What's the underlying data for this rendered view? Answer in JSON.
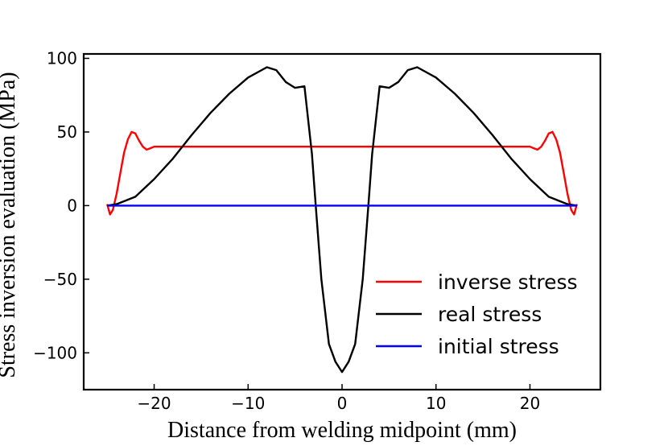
{
  "chart_data": {
    "type": "line",
    "title": "",
    "xlabel": "Distance from welding midpoint (mm)",
    "ylabel": "Stress inversion evaluation (MPa)",
    "xlim": [
      -27.5,
      27.5
    ],
    "ylim": [
      -125,
      103
    ],
    "xticks": [
      -20,
      -10,
      0,
      10,
      20
    ],
    "xtick_labels": [
      "−20",
      "−10",
      "0",
      "10",
      "20"
    ],
    "yticks": [
      100,
      50,
      0,
      -50,
      -100
    ],
    "ytick_labels": [
      "100",
      "50",
      "0",
      "−50",
      "−100"
    ],
    "grid": false,
    "legend_position": "lower-right",
    "series": [
      {
        "name": "inverse stress",
        "color": "#ff0000",
        "x": [
          -25,
          -24.7,
          -24.4,
          -24.0,
          -23.6,
          -23.2,
          -22.8,
          -22.4,
          -22.0,
          -21.6,
          -21.2,
          -20.8,
          -20.4,
          -20.0,
          -19.5,
          -15,
          -10,
          -5,
          0,
          5,
          10,
          15,
          19.5,
          20.0,
          20.4,
          20.8,
          21.2,
          21.6,
          22.0,
          22.4,
          22.8,
          23.2,
          23.6,
          24.0,
          24.4,
          24.7,
          25
        ],
        "y": [
          1,
          -6,
          -3,
          8,
          22,
          36,
          45,
          50,
          49,
          44,
          40,
          38,
          39,
          40,
          40,
          40,
          40,
          40,
          40,
          40,
          40,
          40,
          40,
          40,
          39,
          38,
          40,
          44,
          49,
          50,
          45,
          36,
          22,
          8,
          -3,
          -6,
          1
        ]
      },
      {
        "name": "real stress",
        "color": "#000000",
        "x": [
          -25,
          -24,
          -22,
          -20,
          -18,
          -16,
          -14,
          -12,
          -10,
          -8,
          -7,
          -6,
          -5,
          -4,
          -3.2,
          -2.8,
          -2.2,
          -1.4,
          -0.7,
          0,
          0.7,
          1.4,
          2.2,
          2.8,
          3.2,
          4,
          5,
          6,
          7,
          8,
          10,
          12,
          14,
          16,
          18,
          20,
          22,
          24,
          25
        ],
        "y": [
          0,
          1,
          6,
          18,
          32,
          48,
          63,
          76,
          87,
          94,
          92,
          84,
          80,
          81,
          35,
          0,
          -50,
          -94,
          -106,
          -113,
          -106,
          -94,
          -50,
          0,
          35,
          81,
          80,
          84,
          92,
          94,
          87,
          76,
          63,
          48,
          32,
          18,
          6,
          1,
          0
        ]
      },
      {
        "name": "initial stress",
        "color": "#0000ff",
        "x": [
          -25,
          25
        ],
        "y": [
          0,
          0
        ]
      }
    ]
  }
}
